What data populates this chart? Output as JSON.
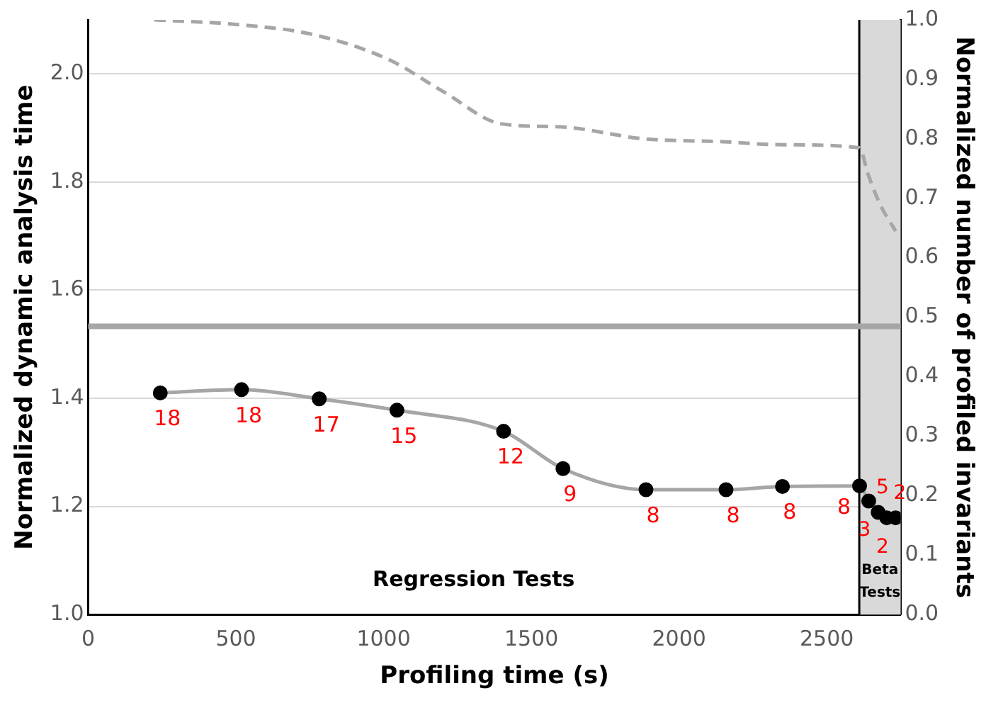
{
  "chart_data": {
    "type": "line",
    "xlabel": "Profiling time (s)",
    "ylabel": "Normalized dynamic analysis time",
    "y2label": "Normalized number of profiled invariants",
    "xlim": [
      0,
      2750
    ],
    "xticks": [
      0,
      500,
      1000,
      1500,
      2000,
      2500
    ],
    "ylim": [
      1.0,
      2.1
    ],
    "yticks": [
      {
        "value": 1.0,
        "label": "1.0"
      },
      {
        "value": 1.2,
        "label": "1.2"
      },
      {
        "value": 1.4,
        "label": "1.4"
      },
      {
        "value": 1.6,
        "label": "1.6"
      },
      {
        "value": 1.8,
        "label": "1.8"
      },
      {
        "value": 2.0,
        "label": "2.0"
      }
    ],
    "y2lim": [
      0,
      1
    ],
    "y2ticks": [
      {
        "value": 0,
        "label": "0.0"
      },
      {
        "value": 0.1,
        "label": "0.1"
      },
      {
        "value": 0.2,
        "label": "0.2"
      },
      {
        "value": 0.3,
        "label": "0.3"
      },
      {
        "value": 0.4,
        "label": "0.4"
      },
      {
        "value": 0.5,
        "label": "0.5"
      },
      {
        "value": 0.6,
        "label": "0.6"
      },
      {
        "value": 0.7,
        "label": "0.7"
      },
      {
        "value": 0.8,
        "label": "0.8"
      },
      {
        "value": 0.9,
        "label": "0.9"
      },
      {
        "value": 1,
        "label": "1.0"
      }
    ],
    "grid": "y",
    "legend": false,
    "series": [
      {
        "color": "#a6a6a6",
        "marker": "circle",
        "line_style": "solid",
        "x": [
          244,
          519,
          782,
          1045,
          1406,
          1607,
          1888,
          2159,
          2350,
          2611,
          2642,
          2674,
          2703,
          2733
        ],
        "values": [
          1.41,
          1.416,
          1.399,
          1.378,
          1.339,
          1.27,
          1.231,
          1.231,
          1.237,
          1.238,
          1.21,
          1.189,
          1.179,
          1.179
        ]
      },
      {
        "axis": "y2",
        "color": "#a6a6a6",
        "marker": "none",
        "line_style": "dashed",
        "x": [
          224,
          507,
          755,
          1014,
          1200,
          1400,
          1600,
          1880,
          2150,
          2350,
          2610,
          2640,
          2680,
          2733
        ],
        "values": [
          1.0,
          0.992,
          0.976,
          0.934,
          0.88,
          0.825,
          0.82,
          0.8,
          0.795,
          0.79,
          0.785,
          0.74,
          0.69,
          0.645
        ]
      }
    ],
    "bands": [
      {
        "axis": "x",
        "from": 2610,
        "to": 2750,
        "color": "#d9d9d9"
      }
    ],
    "ref_lines": [
      {
        "axis": "x",
        "value": 2610,
        "color": "#000000"
      },
      {
        "axis": "y",
        "value": 1.533,
        "color": "#a6a6a6"
      }
    ],
    "annotations": [
      "Regression Tests",
      "Beta Tests",
      {
        "text": "18",
        "x": 244,
        "y": 1.41
      },
      {
        "text": "18",
        "x": 519,
        "y": 1.416
      },
      {
        "text": "17",
        "x": 782,
        "y": 1.399
      },
      {
        "text": "15",
        "x": 1045,
        "y": 1.378
      },
      {
        "text": "12",
        "x": 1406,
        "y": 1.339
      },
      {
        "text": "9",
        "x": 1607,
        "y": 1.27
      },
      {
        "text": "8",
        "x": 1888,
        "y": 1.231
      },
      {
        "text": "8",
        "x": 2159,
        "y": 1.231
      },
      {
        "text": "8",
        "x": 2350,
        "y": 1.237
      },
      {
        "text": "8",
        "x": 2611,
        "y": 1.238
      },
      {
        "text": "3",
        "x": 2642,
        "y": 1.21
      },
      {
        "text": "5",
        "x": 2674,
        "y": 1.189
      },
      {
        "text": "2",
        "x": 2703,
        "y": 1.179
      },
      {
        "text": "2",
        "x": 2733,
        "y": 1.179
      }
    ]
  }
}
